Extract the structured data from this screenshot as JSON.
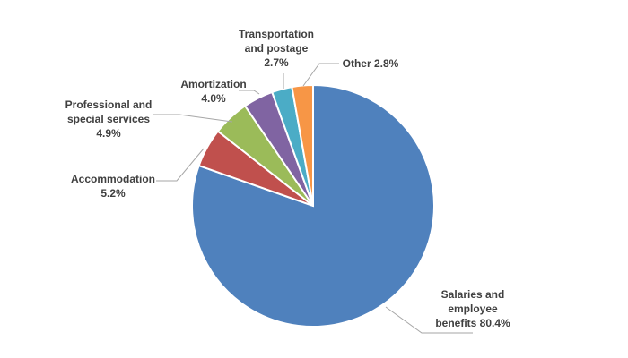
{
  "chart_data": {
    "type": "pie",
    "title": "",
    "start_angle_deg": 0,
    "direction": "clockwise",
    "slices": [
      {
        "name": "salaries",
        "label_lines": [
          "Salaries and",
          "employee",
          "benefits 80.4%"
        ],
        "value": 80.4,
        "color": "#4f81bd"
      },
      {
        "name": "accommodation",
        "label_lines": [
          "Accommodation",
          "5.2%"
        ],
        "value": 5.2,
        "color": "#c0504d"
      },
      {
        "name": "professional",
        "label_lines": [
          "Professional and",
          "special services",
          "4.9%"
        ],
        "value": 4.9,
        "color": "#9bbb59"
      },
      {
        "name": "amortization",
        "label_lines": [
          "Amortization",
          "4.0%"
        ],
        "value": 4.0,
        "color": "#8064a2"
      },
      {
        "name": "transportation",
        "label_lines": [
          "Transportation",
          "and postage",
          "2.7%"
        ],
        "value": 2.7,
        "color": "#4bacc6"
      },
      {
        "name": "other",
        "label_lines": [
          "Other 2.8%"
        ],
        "value": 2.8,
        "color": "#f79646"
      }
    ]
  }
}
